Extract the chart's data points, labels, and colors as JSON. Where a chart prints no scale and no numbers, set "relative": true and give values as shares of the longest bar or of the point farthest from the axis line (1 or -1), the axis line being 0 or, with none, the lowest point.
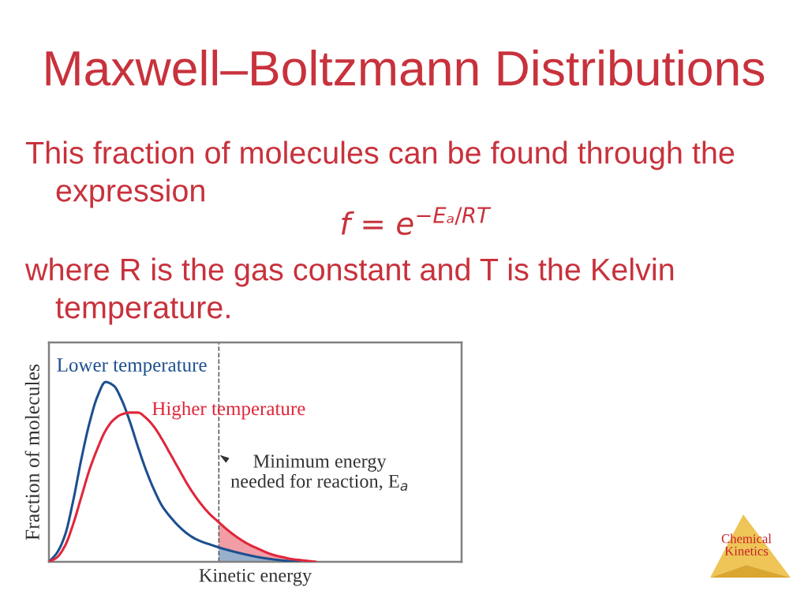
{
  "chart_data": {
    "type": "line",
    "title": "Maxwell–Boltzmann Distributions",
    "xlabel": "Kinetic energy",
    "ylabel": "Fraction of molecules",
    "relative": true,
    "legend": false,
    "tick_labels": false,
    "line_style": "solid",
    "categories": [
      null,
      null,
      null,
      null,
      null,
      null,
      null,
      null,
      null,
      null,
      null,
      null,
      null,
      null,
      null,
      null,
      null,
      null,
      null,
      null,
      null,
      null,
      null,
      null,
      null,
      null,
      null,
      null,
      null,
      null,
      null,
      null,
      null,
      null,
      null,
      null,
      null,
      null,
      null,
      null,
      null,
      null,
      null,
      null,
      null,
      null,
      null,
      null,
      null,
      null,
      null,
      null
    ],
    "series": [
      {
        "name": "Lower temperature",
        "color": "#1d4f8f",
        "values": [
          0,
          0.05,
          0.15,
          0.34,
          0.57,
          0.77,
          0.92,
          1,
          0.98,
          0.9,
          0.78,
          0.64,
          0.51,
          0.4,
          0.31,
          0.25,
          0.2,
          0.16,
          0.13,
          0.11,
          0.095,
          0.08,
          0.067,
          0.055,
          0.044,
          0.034,
          0.025,
          0.018,
          0.012,
          0.007,
          0.003,
          0,
          null,
          null,
          null,
          null,
          null,
          null,
          null,
          null,
          null,
          null,
          null,
          null,
          null,
          null,
          null,
          null,
          null,
          null,
          null,
          null
        ],
        "lower": [
          null,
          null,
          null,
          null,
          null,
          null,
          null,
          null,
          null,
          null,
          null,
          null,
          null,
          null,
          null,
          null,
          null,
          null,
          null,
          null,
          null,
          0,
          0,
          0,
          0,
          0,
          0,
          0,
          0,
          0,
          0,
          0,
          null,
          null,
          null,
          null,
          null,
          null,
          null,
          null,
          null,
          null,
          null,
          null,
          null,
          null,
          null,
          null,
          null,
          null,
          null,
          null
        ],
        "upper": [
          null,
          null,
          null,
          null,
          null,
          null,
          null,
          null,
          null,
          null,
          null,
          null,
          null,
          null,
          null,
          null,
          null,
          null,
          null,
          null,
          null,
          0.08,
          0.067,
          0.055,
          0.044,
          0.034,
          0.025,
          0.018,
          0.012,
          0.007,
          0.003,
          0,
          null,
          null,
          null,
          null,
          null,
          null,
          null,
          null,
          null,
          null,
          null,
          null,
          null,
          null,
          null,
          null,
          null,
          null,
          null,
          null
        ]
      },
      {
        "name": "Higher temperature",
        "color": "#e0263a",
        "values": [
          0,
          0.025,
          0.09,
          0.21,
          0.36,
          0.51,
          0.63,
          0.73,
          0.79,
          0.82,
          0.83,
          0.83,
          0.8,
          0.75,
          0.68,
          0.6,
          0.52,
          0.44,
          0.37,
          0.31,
          0.26,
          0.22,
          0.18,
          0.145,
          0.115,
          0.09,
          0.07,
          0.05,
          0.035,
          0.025,
          0.015,
          0.01,
          0.005,
          0,
          null,
          null,
          null,
          null,
          null,
          null,
          null,
          null,
          null,
          null,
          null,
          null,
          null,
          null,
          null,
          null,
          null,
          null
        ],
        "lower": [
          null,
          null,
          null,
          null,
          null,
          null,
          null,
          null,
          null,
          null,
          null,
          null,
          null,
          null,
          null,
          null,
          null,
          null,
          null,
          null,
          null,
          0.08,
          0.067,
          0.055,
          0.044,
          0.034,
          0.025,
          0.018,
          0.012,
          0.007,
          0.003,
          0,
          0,
          0,
          null,
          null,
          null,
          null,
          null,
          null,
          null,
          null,
          null,
          null,
          null,
          null,
          null,
          null,
          null,
          null,
          null,
          null
        ],
        "upper": [
          null,
          null,
          null,
          null,
          null,
          null,
          null,
          null,
          null,
          null,
          null,
          null,
          null,
          null,
          null,
          null,
          null,
          null,
          null,
          null,
          null,
          0.22,
          0.18,
          0.145,
          0.115,
          0.09,
          0.07,
          0.05,
          0.035,
          0.025,
          0.015,
          0.01,
          0.005,
          0,
          null,
          null,
          null,
          null,
          null,
          null,
          null,
          null,
          null,
          null,
          null,
          null,
          null,
          null,
          null,
          null,
          null,
          null
        ]
      }
    ],
    "annotations": [
      "This fraction of molecules can be found through the expression",
      "f = e$^{−Eₐ/RT}$",
      "where R is the gas constant and T is the Kelvin temperature.",
      "Minimum energy\nneeded for reaction, E$_{a}$",
      "Chemical\nKinetics"
    ]
  }
}
